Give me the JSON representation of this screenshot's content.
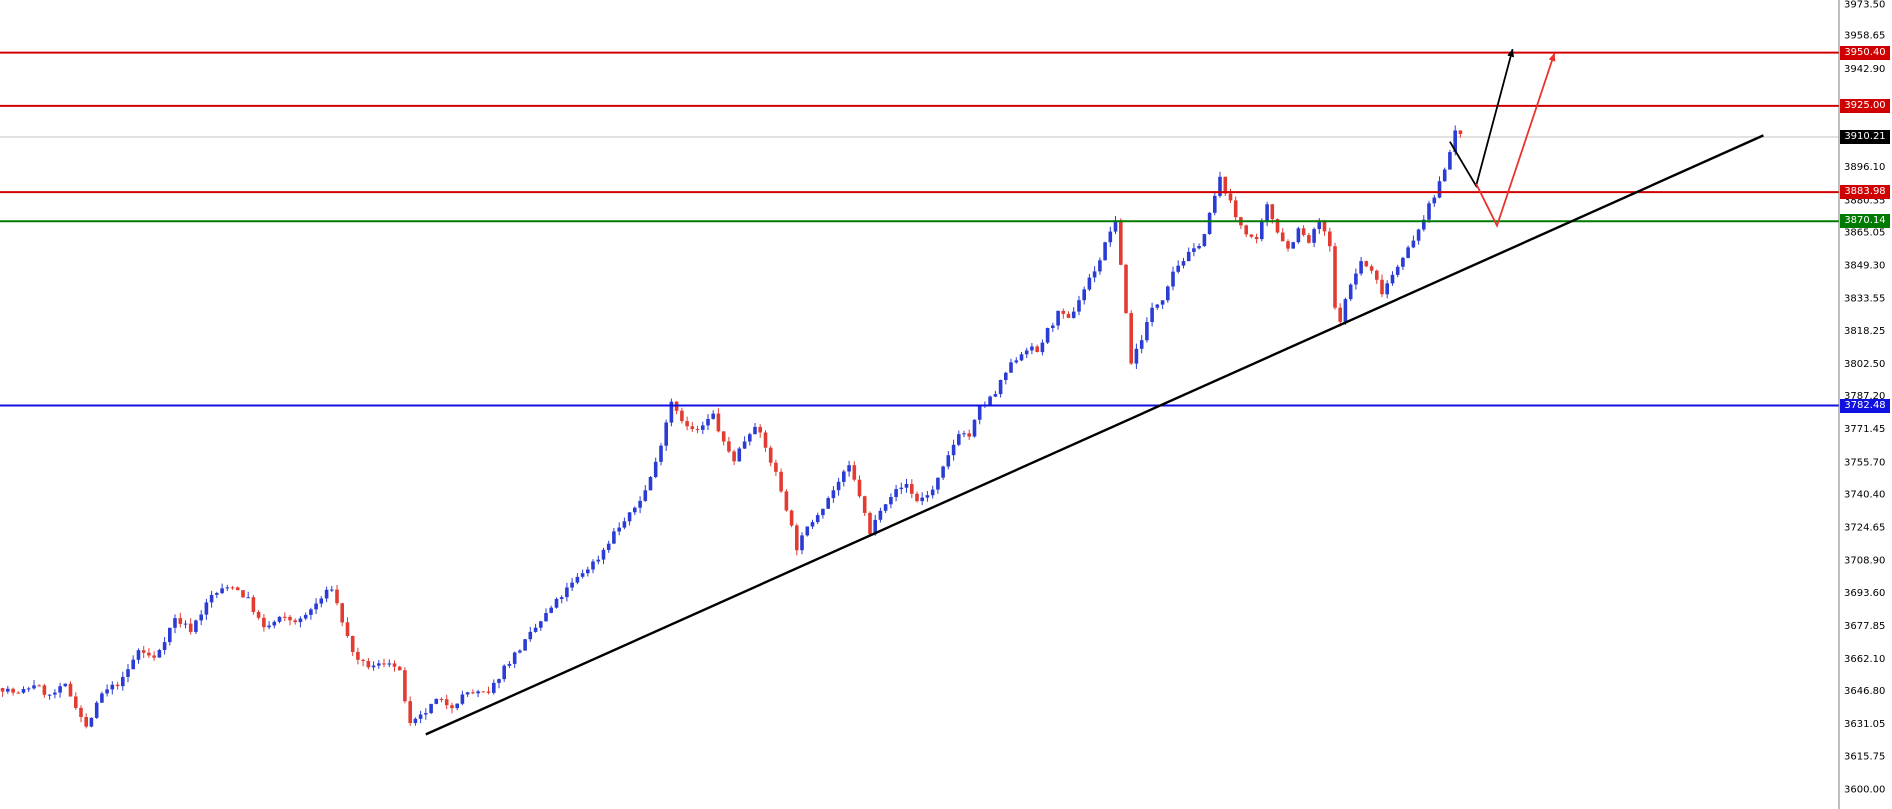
{
  "chart_data": {
    "type": "candlestick",
    "background": "#ffffff",
    "up_color": "#2a3cd4",
    "down_color": "#e13b32",
    "bars_total": 280,
    "price_axis": {
      "side": "right",
      "min": 3600.0,
      "max": 3973.5,
      "separator_color": "#7f7f7f",
      "text_color": "#000000",
      "ticks": [
        "3973.50",
        "3958.65",
        "3942.90",
        "3896.10",
        "3880.35",
        "3865.05",
        "3849.30",
        "3833.55",
        "3818.25",
        "3802.50",
        "3787.20",
        "3771.45",
        "3755.70",
        "3740.40",
        "3724.65",
        "3708.90",
        "3693.60",
        "3677.85",
        "3662.10",
        "3646.80",
        "3631.05",
        "3615.75",
        "3600.00"
      ]
    },
    "current_price": {
      "value": 3910.21,
      "label": "3910.21",
      "badge_color": "#000000",
      "line_color": "#c4c4c4"
    },
    "levels": [
      {
        "value": 3950.4,
        "label": "3950.40",
        "color": "#d10000"
      },
      {
        "value": 3925.0,
        "label": "3925.00",
        "color": "#d10000"
      },
      {
        "value": 3883.98,
        "label": "3883.98",
        "color": "#d10000"
      },
      {
        "value": 3870.14,
        "label": "3870.14",
        "color": "#007a00"
      },
      {
        "value": 3782.48,
        "label": "3782.48",
        "color": "#1010e0"
      }
    ],
    "trendline": {
      "color": "#000000",
      "points_bar_price": [
        [
          81,
          3626
        ],
        [
          337,
          3911
        ]
      ]
    },
    "projection_arrows": [
      {
        "color": "#000000",
        "points_bar_price": [
          [
            277,
            3908
          ],
          [
            282,
            3887
          ],
          [
            289,
            3952
          ]
        ]
      },
      {
        "color": "#e8342c",
        "points_bar_price": [
          [
            282,
            3888
          ],
          [
            286,
            3868
          ],
          [
            297,
            3950
          ]
        ]
      }
    ],
    "price_path": [
      [
        0,
        3648
      ],
      [
        3,
        3645
      ],
      [
        6,
        3650
      ],
      [
        9,
        3644
      ],
      [
        12,
        3649
      ],
      [
        14,
        3640
      ],
      [
        16,
        3629
      ],
      [
        19,
        3645
      ],
      [
        23,
        3652
      ],
      [
        26,
        3666
      ],
      [
        29,
        3662
      ],
      [
        33,
        3681
      ],
      [
        36,
        3676
      ],
      [
        40,
        3692
      ],
      [
        44,
        3697
      ],
      [
        47,
        3690
      ],
      [
        50,
        3676
      ],
      [
        53,
        3681
      ],
      [
        57,
        3680
      ],
      [
        60,
        3688
      ],
      [
        63,
        3696
      ],
      [
        66,
        3672
      ],
      [
        68,
        3660
      ],
      [
        71,
        3658
      ],
      [
        74,
        3661
      ],
      [
        76,
        3655
      ],
      [
        78,
        3630
      ],
      [
        80,
        3634
      ],
      [
        83,
        3642
      ],
      [
        86,
        3640
      ],
      [
        89,
        3646
      ],
      [
        93,
        3645
      ],
      [
        96,
        3658
      ],
      [
        100,
        3670
      ],
      [
        104,
        3683
      ],
      [
        107,
        3692
      ],
      [
        111,
        3703
      ],
      [
        114,
        3710
      ],
      [
        117,
        3722
      ],
      [
        120,
        3730
      ],
      [
        123,
        3742
      ],
      [
        125,
        3755
      ],
      [
        128,
        3785
      ],
      [
        131,
        3772
      ],
      [
        133,
        3770
      ],
      [
        136,
        3778
      ],
      [
        138,
        3764
      ],
      [
        140,
        3757
      ],
      [
        142,
        3766
      ],
      [
        144,
        3774
      ],
      [
        146,
        3762
      ],
      [
        148,
        3750
      ],
      [
        150,
        3734
      ],
      [
        152,
        3715
      ],
      [
        155,
        3728
      ],
      [
        157,
        3735
      ],
      [
        160,
        3746
      ],
      [
        162,
        3753
      ],
      [
        164,
        3740
      ],
      [
        166,
        3721
      ],
      [
        168,
        3734
      ],
      [
        170,
        3740
      ],
      [
        173,
        3745
      ],
      [
        175,
        3737
      ],
      [
        178,
        3742
      ],
      [
        180,
        3752
      ],
      [
        183,
        3770
      ],
      [
        185,
        3768
      ],
      [
        187,
        3781
      ],
      [
        190,
        3788
      ],
      [
        192,
        3798
      ],
      [
        194,
        3805
      ],
      [
        196,
        3810
      ],
      [
        198,
        3808
      ],
      [
        200,
        3818
      ],
      [
        202,
        3826
      ],
      [
        204,
        3823
      ],
      [
        207,
        3838
      ],
      [
        210,
        3852
      ],
      [
        212,
        3866
      ],
      [
        213,
        3869
      ],
      [
        214,
        3850
      ],
      [
        216,
        3803
      ],
      [
        218,
        3815
      ],
      [
        220,
        3828
      ],
      [
        222,
        3834
      ],
      [
        224,
        3847
      ],
      [
        226,
        3852
      ],
      [
        228,
        3856
      ],
      [
        230,
        3864
      ],
      [
        232,
        3882
      ],
      [
        233,
        3890
      ],
      [
        234,
        3885
      ],
      [
        236,
        3872
      ],
      [
        238,
        3865
      ],
      [
        240,
        3860
      ],
      [
        242,
        3877
      ],
      [
        244,
        3866
      ],
      [
        246,
        3857
      ],
      [
        248,
        3866
      ],
      [
        250,
        3860
      ],
      [
        252,
        3870
      ],
      [
        254,
        3858
      ],
      [
        255,
        3828
      ],
      [
        256,
        3824
      ],
      [
        258,
        3840
      ],
      [
        260,
        3851
      ],
      [
        262,
        3846
      ],
      [
        264,
        3837
      ],
      [
        266,
        3845
      ],
      [
        268,
        3854
      ],
      [
        270,
        3860
      ],
      [
        272,
        3872
      ],
      [
        274,
        3882
      ],
      [
        276,
        3896
      ],
      [
        278,
        3913
      ],
      [
        279,
        3910
      ]
    ]
  }
}
